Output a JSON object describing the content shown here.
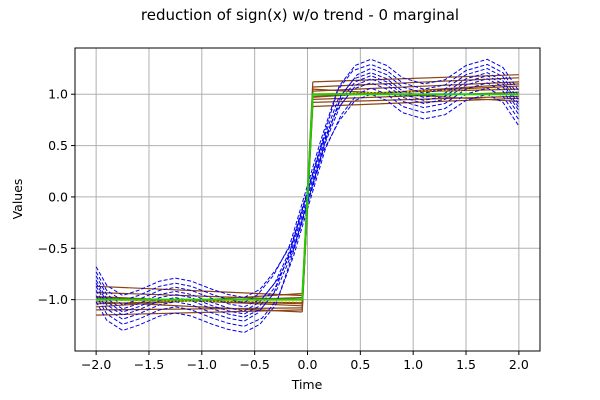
{
  "chart_data": {
    "type": "line",
    "title": "reduction of sign(x) w/o trend - 0 marginal",
    "xlabel": "Time",
    "ylabel": "Values",
    "xlim": [
      -2.2,
      2.2
    ],
    "ylim": [
      -1.5,
      1.45
    ],
    "xticks": [
      -2.0,
      -1.5,
      -1.0,
      -0.5,
      0.0,
      0.5,
      1.0,
      1.5,
      2.0
    ],
    "xtick_labels": [
      "−2.0",
      "−1.5",
      "−1.0",
      "−0.5",
      "0.0",
      "0.5",
      "1.0",
      "1.5",
      "2.0"
    ],
    "yticks": [
      -1.0,
      -0.5,
      0.0,
      0.5,
      1.0
    ],
    "ytick_labels": [
      "−1.0",
      "−0.5",
      "0.0",
      "0.5",
      "1.0"
    ],
    "grid": true,
    "legend": "none",
    "colors": {
      "reduced_realizations": "#8b4513",
      "reduced_mean": "#ffd700",
      "sign_function": "#22cc00",
      "reconstruction": "#0000ee",
      "grid": "#b0b0b0"
    },
    "series": [
      {
        "style": "solid",
        "color": "#8b4513",
        "kind": "reduced_realizations",
        "x": [
          -2.0,
          -0.05,
          -0.05,
          0.05,
          0.05,
          2.0
        ],
        "curves": [
          [
            -0.87,
            -0.96,
            null,
            null,
            1.12,
            1.19
          ],
          [
            -0.93,
            -1.0,
            null,
            null,
            1.07,
            1.16
          ],
          [
            -0.98,
            -1.04,
            null,
            null,
            1.03,
            1.12
          ],
          [
            -1.0,
            -1.03,
            null,
            null,
            1.0,
            1.05
          ],
          [
            -1.04,
            -0.98,
            null,
            null,
            0.98,
            1.08
          ],
          [
            -1.07,
            -0.94,
            null,
            null,
            0.95,
            1.02
          ],
          [
            -1.1,
            -1.08,
            null,
            null,
            0.92,
            0.98
          ],
          [
            -1.15,
            -1.1,
            null,
            null,
            0.88,
            0.96
          ],
          [
            -0.97,
            -1.06,
            null,
            null,
            1.05,
            0.93
          ],
          [
            -1.02,
            -1.12,
            null,
            null,
            0.97,
            1.1
          ]
        ]
      },
      {
        "style": "dotted",
        "color": "#ffd700",
        "kind": "reduced_mean",
        "x": [
          -2.0,
          -0.05,
          0.05,
          2.0
        ],
        "y": [
          -1.01,
          -1.02,
          1.0,
          1.06
        ]
      },
      {
        "style": "solid",
        "color": "#22cc00",
        "kind": "sign_function",
        "x": [
          -2.0,
          -0.05,
          -0.03,
          0.0,
          0.03,
          0.05,
          2.0
        ],
        "y": [
          -1.0,
          -1.0,
          -0.6,
          0.0,
          0.6,
          1.0,
          1.0
        ]
      },
      {
        "style": "dashed",
        "color": "#0000ee",
        "kind": "reconstruction",
        "x": [
          -2.0,
          -1.9,
          -1.75,
          -1.6,
          -1.4,
          -1.25,
          -1.1,
          -0.9,
          -0.75,
          -0.6,
          -0.45,
          -0.3,
          -0.15,
          0.0,
          0.15,
          0.3,
          0.45,
          0.6,
          0.75,
          0.9,
          1.1,
          1.3,
          1.5,
          1.7,
          1.85,
          2.0
        ],
        "y": [
          -0.84,
          -1.02,
          -1.12,
          -1.07,
          -0.98,
          -0.95,
          -0.98,
          -1.06,
          -1.11,
          -1.14,
          -1.06,
          -0.87,
          -0.52,
          0.0,
          0.52,
          0.92,
          1.12,
          1.18,
          1.12,
          1.0,
          0.94,
          0.98,
          1.12,
          1.18,
          1.1,
          0.87
        ],
        "offsets": [
          -0.18,
          -0.12,
          -0.07,
          -0.03,
          0.0,
          0.03,
          0.07,
          0.11,
          0.16
        ],
        "x_shifts": [
          0.0,
          0.02,
          -0.02,
          0.01,
          0.0,
          -0.01,
          0.02,
          -0.02,
          0.0
        ]
      }
    ]
  }
}
